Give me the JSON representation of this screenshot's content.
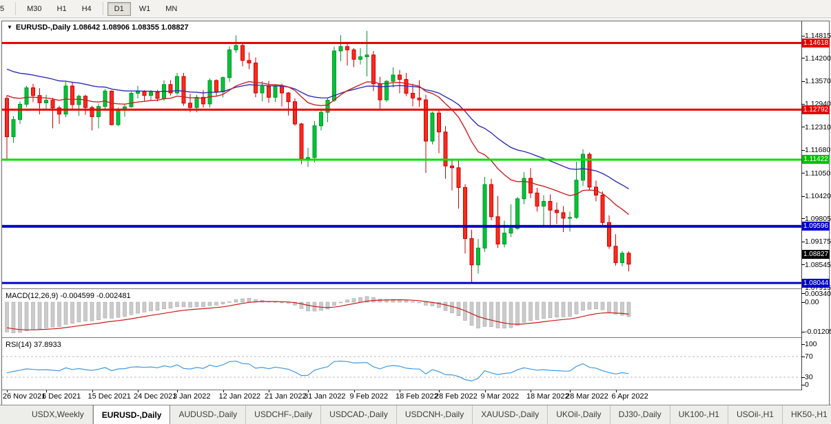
{
  "toolbar": {
    "groups": [
      [
        "5"
      ],
      [
        "M30",
        "H1",
        "H4"
      ],
      [
        "D1",
        "W1",
        "MN"
      ]
    ],
    "active": "D1"
  },
  "header": {
    "collapse_icon": "▼",
    "symbol": "EURUSD-,Daily",
    "ohlc": "1.08642 1.08906 1.08355 1.08827"
  },
  "price_axis": {
    "ticks": [
      "1.14815",
      "1.14200",
      "1.13570",
      "1.12940",
      "1.12310",
      "1.11680",
      "1.11050",
      "1.10420",
      "1.09805",
      "1.09175",
      "1.08545",
      "1.07915"
    ],
    "tags": [
      {
        "text": "1.14618",
        "color": "#E60000",
        "name": "resistance-tag"
      },
      {
        "text": "1.12792",
        "color": "#E60000",
        "name": "resistance-tag"
      },
      {
        "text": "1.11422",
        "color": "#00C000",
        "name": "support-tag"
      },
      {
        "text": "1.09596",
        "color": "#0000C8",
        "name": "support-tag"
      },
      {
        "text": "1.08827",
        "color": "#000000",
        "name": "current-price-tag"
      },
      {
        "text": "1.08044",
        "color": "#0000C8",
        "name": "support-tag"
      }
    ]
  },
  "chart_data": {
    "type": "candlestick",
    "symbol": "EURUSD-",
    "timeframe": "Daily",
    "current_ohlc": {
      "open": "1.08642",
      "high": "1.08906",
      "low": "1.08355",
      "close": "1.08827"
    },
    "y_axis_range": [
      1.07915,
      1.14815
    ],
    "candle_colors": {
      "up_fill": "#00C437",
      "up_stroke": "#009428",
      "down_fill": "#FB2B20",
      "down_stroke": "#C80000"
    },
    "candles": [
      [
        1.131,
        1.1318,
        1.114,
        1.1205
      ],
      [
        1.1205,
        1.1262,
        1.1188,
        1.1252
      ],
      [
        1.1252,
        1.1302,
        1.124,
        1.1294
      ],
      [
        1.1294,
        1.1344,
        1.1286,
        1.1339
      ],
      [
        1.1339,
        1.135,
        1.13,
        1.1318
      ],
      [
        1.1318,
        1.1338,
        1.1266,
        1.1298
      ],
      [
        1.1298,
        1.132,
        1.128,
        1.1305
      ],
      [
        1.1305,
        1.1312,
        1.1228,
        1.1284
      ],
      [
        1.1284,
        1.129,
        1.124,
        1.1267
      ],
      [
        1.1267,
        1.1355,
        1.1258,
        1.1344
      ],
      [
        1.1344,
        1.1356,
        1.128,
        1.1293
      ],
      [
        1.1293,
        1.132,
        1.1262,
        1.1316
      ],
      [
        1.1316,
        1.132,
        1.1265,
        1.1285
      ],
      [
        1.1285,
        1.129,
        1.1222,
        1.126
      ],
      [
        1.126,
        1.1296,
        1.1228,
        1.1288
      ],
      [
        1.1288,
        1.1336,
        1.128,
        1.133
      ],
      [
        1.133,
        1.1332,
        1.1236,
        1.1238
      ],
      [
        1.1238,
        1.1285,
        1.1234,
        1.128
      ],
      [
        1.128,
        1.1294,
        1.126,
        1.1287
      ],
      [
        1.1287,
        1.1328,
        1.1285,
        1.1324
      ],
      [
        1.1324,
        1.1344,
        1.131,
        1.1329
      ],
      [
        1.1329,
        1.1333,
        1.1303,
        1.1318
      ],
      [
        1.1318,
        1.1333,
        1.1306,
        1.1327
      ],
      [
        1.1327,
        1.1333,
        1.1302,
        1.131
      ],
      [
        1.131,
        1.136,
        1.1304,
        1.1348
      ],
      [
        1.1348,
        1.136,
        1.1318,
        1.1325
      ],
      [
        1.1325,
        1.138,
        1.132,
        1.137
      ],
      [
        1.137,
        1.138,
        1.129,
        1.1297
      ],
      [
        1.1297,
        1.1323,
        1.1272,
        1.1285
      ],
      [
        1.1285,
        1.132,
        1.1272,
        1.1313
      ],
      [
        1.1313,
        1.1333,
        1.1285,
        1.1295
      ],
      [
        1.1295,
        1.1365,
        1.1285,
        1.1359
      ],
      [
        1.1359,
        1.1362,
        1.1315,
        1.1328
      ],
      [
        1.1328,
        1.137,
        1.1313,
        1.1367
      ],
      [
        1.1367,
        1.1453,
        1.1355,
        1.1443
      ],
      [
        1.1443,
        1.1483,
        1.1435,
        1.1455
      ],
      [
        1.1455,
        1.146,
        1.1398,
        1.1414
      ],
      [
        1.1414,
        1.1436,
        1.139,
        1.1407
      ],
      [
        1.1407,
        1.1422,
        1.1313,
        1.1325
      ],
      [
        1.1325,
        1.1357,
        1.1302,
        1.1343
      ],
      [
        1.1343,
        1.1358,
        1.1298,
        1.1313
      ],
      [
        1.1313,
        1.1348,
        1.13,
        1.1343
      ],
      [
        1.1343,
        1.135,
        1.1288,
        1.1325
      ],
      [
        1.1325,
        1.1327,
        1.1263,
        1.1301
      ],
      [
        1.1301,
        1.131,
        1.1235,
        1.124
      ],
      [
        1.124,
        1.1243,
        1.113,
        1.1145
      ],
      [
        1.1145,
        1.1175,
        1.1122,
        1.1148
      ],
      [
        1.1148,
        1.1248,
        1.1135,
        1.1235
      ],
      [
        1.1235,
        1.128,
        1.1222,
        1.1272
      ],
      [
        1.1272,
        1.131,
        1.1245,
        1.1305
      ],
      [
        1.1305,
        1.1452,
        1.13,
        1.144
      ],
      [
        1.144,
        1.1483,
        1.1412,
        1.1452
      ],
      [
        1.1452,
        1.1465,
        1.14,
        1.1443
      ],
      [
        1.1443,
        1.1448,
        1.1396,
        1.1417
      ],
      [
        1.1417,
        1.1448,
        1.1403,
        1.1424
      ],
      [
        1.1424,
        1.1495,
        1.137,
        1.1429
      ],
      [
        1.1429,
        1.144,
        1.133,
        1.135
      ],
      [
        1.135,
        1.1369,
        1.128,
        1.1306
      ],
      [
        1.1306,
        1.136,
        1.13,
        1.1357
      ],
      [
        1.1357,
        1.1395,
        1.134,
        1.1374
      ],
      [
        1.1374,
        1.1388,
        1.1324,
        1.1362
      ],
      [
        1.1362,
        1.138,
        1.1316,
        1.1324
      ],
      [
        1.1324,
        1.135,
        1.1288,
        1.1311
      ],
      [
        1.1311,
        1.136,
        1.1287,
        1.1306
      ],
      [
        1.1306,
        1.132,
        1.1106,
        1.1193
      ],
      [
        1.1193,
        1.1274,
        1.1184,
        1.127
      ],
      [
        1.127,
        1.1278,
        1.116,
        1.1218
      ],
      [
        1.1218,
        1.1234,
        1.109,
        1.1125
      ],
      [
        1.1125,
        1.114,
        1.1058,
        1.112
      ],
      [
        1.112,
        1.114,
        1.1008,
        1.1066
      ],
      [
        1.1066,
        1.1075,
        1.0885,
        1.0926
      ],
      [
        1.0926,
        1.095,
        1.0806,
        1.0854
      ],
      [
        1.0854,
        1.0925,
        1.083,
        1.09
      ],
      [
        1.09,
        1.1095,
        1.089,
        1.1074
      ],
      [
        1.1074,
        1.109,
        1.0976,
        1.0986
      ],
      [
        1.0986,
        1.1043,
        1.09,
        1.0911
      ],
      [
        1.0911,
        1.0975,
        1.0902,
        1.0941
      ],
      [
        1.0941,
        1.102,
        1.093,
        1.0954
      ],
      [
        1.0954,
        1.104,
        1.095,
        1.1035
      ],
      [
        1.1035,
        1.1108,
        1.102,
        1.1091
      ],
      [
        1.1091,
        1.1119,
        1.1037,
        1.1051
      ],
      [
        1.1051,
        1.1065,
        1.1,
        1.1015
      ],
      [
        1.1015,
        1.1045,
        1.096,
        1.1028
      ],
      [
        1.1028,
        1.1047,
        1.0963,
        1.1004
      ],
      [
        1.1004,
        1.1025,
        1.0966,
        1.0997
      ],
      [
        1.0997,
        1.1015,
        1.0944,
        1.0982
      ],
      [
        1.0982,
        1.1,
        1.0945,
        1.0984
      ],
      [
        1.0984,
        1.1137,
        1.098,
        1.1086
      ],
      [
        1.1086,
        1.1171,
        1.107,
        1.1157
      ],
      [
        1.1157,
        1.1162,
        1.106,
        1.1067
      ],
      [
        1.1067,
        1.1085,
        1.1028,
        1.1045
      ],
      [
        1.1045,
        1.1055,
        1.096,
        1.097
      ],
      [
        1.097,
        1.099,
        1.0898,
        1.0905
      ],
      [
        1.0905,
        1.0938,
        1.0852,
        1.086
      ],
      [
        1.086,
        1.0892,
        1.085,
        1.0886
      ],
      [
        1.0886,
        1.0891,
        1.0836,
        1.0856
      ]
    ],
    "hlines": [
      {
        "price": 1.14618,
        "color": "#E60000",
        "width": 3
      },
      {
        "price": 1.12792,
        "color": "#E60000",
        "width": 3
      },
      {
        "price": 1.11422,
        "color": "#00DE00",
        "width": 3
      },
      {
        "price": 1.09596,
        "color": "#0202CC",
        "width": 4
      },
      {
        "price": 1.08044,
        "color": "#0202CC",
        "width": 3
      }
    ],
    "ma_overlays": [
      {
        "name": "slow-ma-blue",
        "alpha": 0.05,
        "seed": 1.14,
        "color": "#2E2EB8",
        "width": 1.4
      },
      {
        "name": "fast-ma-red",
        "alpha": 0.095,
        "seed": 1.133,
        "color": "#CC2020",
        "width": 1.4
      }
    ],
    "macd": {
      "label": "MACD(12,26,9) -0.004599 -0.002481",
      "fast": 12,
      "slow": 26,
      "signal": 9,
      "current_macd": "-0.004599",
      "current_signal": "-0.002481",
      "axis": [
        {
          "text": "0.003408",
          "value": 0.003408
        },
        {
          "text": "0.00",
          "value": 0
        },
        {
          "text": "-0.01205",
          "value": -0.01205
        }
      ],
      "bar_color": "#CBCBCB",
      "bar_stroke": "#A9A9A9",
      "signal_color": "#CC1818",
      "seeds": {
        "ema_fast": 1.145,
        "ema_slow": 1.156,
        "signal": -0.01
      }
    },
    "rsi": {
      "label": "RSI(14) 37.8933",
      "period": 14,
      "current": "37.8933",
      "axis": [
        {
          "text": "100",
          "value": 100
        },
        {
          "text": "70",
          "value": 70
        },
        {
          "text": "30",
          "value": 30
        },
        {
          "text": "0",
          "value": 0
        }
      ],
      "levels": [
        70,
        30
      ],
      "level_color": "#BDBDBD",
      "color": "#4098E0",
      "seed_gain": 0.003,
      "seed_loss": 0.0048
    },
    "date_labels": [
      {
        "text": "26 Nov 2021",
        "i": 0
      },
      {
        "text": "6 Dec 2021",
        "i": 6
      },
      {
        "text": "15 Dec 2021",
        "i": 13
      },
      {
        "text": "24 Dec 2021",
        "i": 20
      },
      {
        "text": "3 Jan 2022",
        "i": 26
      },
      {
        "text": "12 Jan 2022",
        "i": 33
      },
      {
        "text": "21 Jan 2022",
        "i": 40
      },
      {
        "text": "31 Jan 2022",
        "i": 46
      },
      {
        "text": "9 Feb 2022",
        "i": 53
      },
      {
        "text": "18 Feb 2022",
        "i": 60
      },
      {
        "text": "28 Feb 2022",
        "i": 66
      },
      {
        "text": "9 Mar 2022",
        "i": 73
      },
      {
        "text": "18 Mar 2022",
        "i": 80
      },
      {
        "text": "28 Mar 2022",
        "i": 86
      },
      {
        "text": "6 Apr 2022",
        "i": 93
      }
    ]
  },
  "tabs": {
    "items": [
      {
        "label": "USDX,Weekly"
      },
      {
        "label": "EURUSD-,Daily",
        "active": true
      },
      {
        "label": "AUDUSD-,Daily"
      },
      {
        "label": "USDCHF-,Daily"
      },
      {
        "label": "USDCAD-,Daily"
      },
      {
        "label": "USDCNH-,Daily"
      },
      {
        "label": "XAUUSD-,Daily"
      },
      {
        "label": "UKOil-,Daily"
      },
      {
        "label": "DJ30-,Daily"
      },
      {
        "label": "UK100-,H1"
      },
      {
        "label": "USOil-,H1"
      },
      {
        "label": "HK50-,H1"
      }
    ],
    "scroll_left_icon": "◄",
    "scroll_right_icon": "►"
  }
}
